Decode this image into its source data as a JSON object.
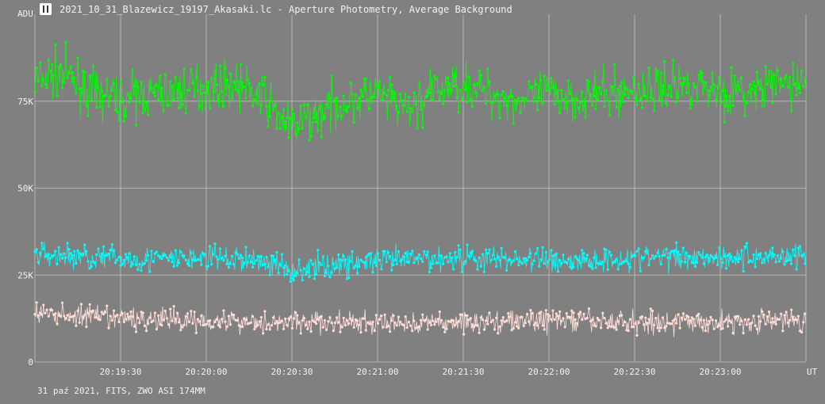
{
  "window": {
    "title": "2021_10_31_Blazewicz_19197_Akasaki.lc - Aperture Photometry, Average Background",
    "icon": "photometry-app-icon"
  },
  "footer": {
    "info": "31 paź 2021, FITS, ZWO ASI 174MM"
  },
  "colors": {
    "background": "#808080",
    "grid": "#b4b4b4",
    "text": "#f2f2f2"
  },
  "chart_data": {
    "type": "scatter",
    "title": "",
    "xlabel": "UT",
    "ylabel": "ADU",
    "ylim": [
      0,
      100000
    ],
    "xlim": [
      "20:19:00",
      "20:23:30"
    ],
    "grid": true,
    "y_ticks": [
      {
        "value": 0,
        "label": "0"
      },
      {
        "value": 25000,
        "label": "25K"
      },
      {
        "value": 50000,
        "label": "50K"
      },
      {
        "value": 75000,
        "label": "75K"
      }
    ],
    "x_ticks": [
      {
        "value": "20:19:30",
        "label": "20:19:30"
      },
      {
        "value": "20:20:00",
        "label": "20:20:00"
      },
      {
        "value": "20:20:30",
        "label": "20:20:30"
      },
      {
        "value": "20:21:00",
        "label": "20:21:00"
      },
      {
        "value": "20:21:30",
        "label": "20:21:30"
      },
      {
        "value": "20:22:00",
        "label": "20:22:00"
      },
      {
        "value": "20:22:30",
        "label": "20:22:30"
      },
      {
        "value": "20:23:00",
        "label": "20:23:00"
      }
    ],
    "series": [
      {
        "color": "#00ff00",
        "x": [
          "20:19:00",
          "20:19:10",
          "20:19:20",
          "20:19:30",
          "20:19:40",
          "20:19:50",
          "20:20:00",
          "20:20:10",
          "20:20:20",
          "20:20:30",
          "20:20:40",
          "20:20:50",
          "20:21:00",
          "20:21:10",
          "20:21:20",
          "20:21:30",
          "20:21:40",
          "20:21:50",
          "20:22:00",
          "20:22:10",
          "20:22:20",
          "20:22:30",
          "20:22:40",
          "20:22:50",
          "20:23:00",
          "20:23:10",
          "20:23:20",
          "20:23:30"
        ],
        "y": [
          81000,
          83000,
          77000,
          76000,
          77000,
          78000,
          79000,
          80000,
          76000,
          67000,
          72000,
          75000,
          77000,
          72000,
          78000,
          80000,
          77000,
          75000,
          77000,
          76000,
          77000,
          78000,
          79000,
          80000,
          78000,
          77000,
          80000,
          80000
        ],
        "spread": 8000
      },
      {
        "color": "#00ffff",
        "x": [
          "20:19:00",
          "20:19:20",
          "20:19:40",
          "20:20:00",
          "20:20:20",
          "20:20:30",
          "20:20:50",
          "20:21:10",
          "20:21:30",
          "20:21:50",
          "20:22:10",
          "20:22:30",
          "20:22:50",
          "20:23:10",
          "20:23:30"
        ],
        "y": [
          31000,
          30000,
          29500,
          30000,
          29000,
          26500,
          28500,
          29500,
          30000,
          29500,
          29000,
          30000,
          30500,
          30000,
          31000
        ],
        "spread": 4500
      },
      {
        "color": "#ffdcd6",
        "x": [
          "20:19:00",
          "20:19:30",
          "20:20:00",
          "20:20:30",
          "20:21:00",
          "20:21:30",
          "20:22:00",
          "20:22:30",
          "20:23:00",
          "20:23:30"
        ],
        "y": [
          14000,
          12500,
          12000,
          11500,
          11000,
          11500,
          12000,
          11500,
          11500,
          12000
        ],
        "spread": 4000
      }
    ]
  }
}
